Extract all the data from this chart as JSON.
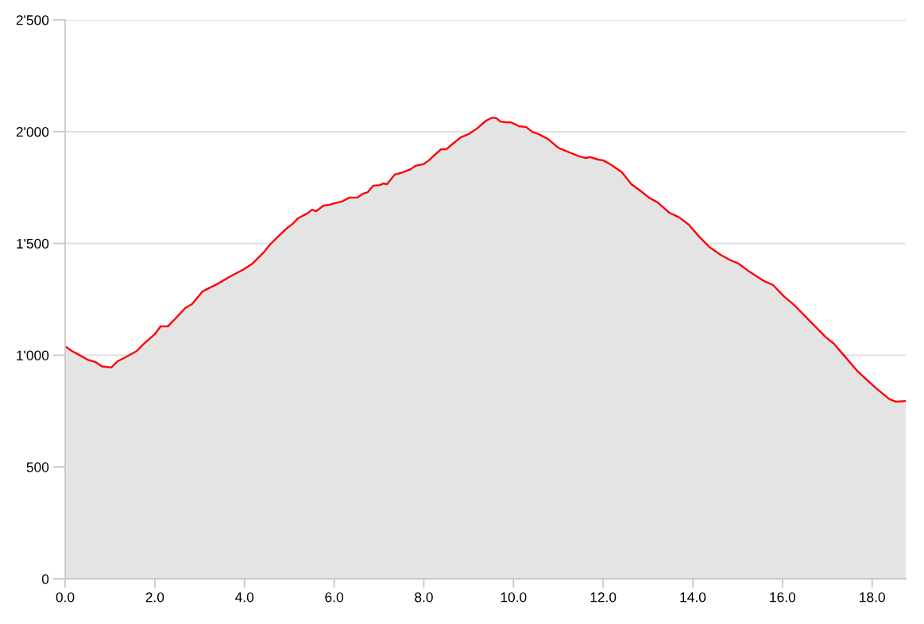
{
  "chart_data": {
    "type": "area",
    "x": [
      0,
      0.14,
      0.32,
      0.5,
      0.67,
      0.82,
      1.03,
      1.17,
      1.35,
      1.6,
      1.74,
      2.0,
      2.13,
      2.29,
      2.48,
      2.68,
      2.83,
      3.07,
      3.38,
      3.69,
      3.99,
      4.18,
      4.43,
      4.57,
      4.75,
      4.96,
      5.07,
      5.19,
      5.4,
      5.51,
      5.6,
      5.76,
      5.9,
      6.02,
      6.17,
      6.34,
      6.52,
      6.64,
      6.75,
      6.87,
      7.02,
      7.1,
      7.18,
      7.35,
      7.53,
      7.71,
      7.81,
      7.99,
      8.11,
      8.38,
      8.5,
      8.65,
      8.82,
      9.0,
      9.18,
      9.39,
      9.53,
      9.62,
      9.71,
      9.83,
      9.94,
      10.06,
      10.12,
      10.28,
      10.42,
      10.56,
      10.77,
      11.0,
      11.25,
      11.48,
      11.61,
      11.71,
      11.89,
      12.01,
      12.19,
      12.42,
      12.63,
      12.85,
      13.02,
      13.22,
      13.48,
      13.7,
      13.91,
      14.14,
      14.37,
      14.62,
      14.85,
      15.02,
      15.26,
      15.56,
      15.79,
      16.03,
      16.26,
      16.62,
      16.97,
      17.15,
      17.33,
      17.68,
      18.09,
      18.39,
      18.53,
      18.75
    ],
    "series": [
      {
        "color": "#ff0000",
        "values": [
          1040,
          1020,
          1000,
          980,
          970,
          950,
          945,
          973,
          991,
          1019,
          1048,
          1094,
          1129,
          1129,
          1168,
          1211,
          1229,
          1286,
          1317,
          1353,
          1385,
          1410,
          1460,
          1495,
          1531,
          1570,
          1587,
          1612,
          1634,
          1651,
          1644,
          1669,
          1673,
          1680,
          1687,
          1705,
          1705,
          1722,
          1729,
          1758,
          1761,
          1768,
          1765,
          1808,
          1818,
          1832,
          1847,
          1854,
          1871,
          1921,
          1921,
          1946,
          1974,
          1989,
          2013,
          2049,
          2063,
          2060,
          2045,
          2042,
          2042,
          2031,
          2024,
          2021,
          1999,
          1989,
          1967,
          1928,
          1907,
          1889,
          1882,
          1886,
          1875,
          1871,
          1850,
          1818,
          1765,
          1733,
          1705,
          1683,
          1637,
          1616,
          1584,
          1531,
          1484,
          1449,
          1424,
          1410,
          1374,
          1335,
          1314,
          1264,
          1225,
          1151,
          1080,
          1051,
          1009,
          927,
          852,
          803,
          792,
          795
        ]
      }
    ],
    "xlim": [
      0,
      18.75
    ],
    "xticks": [
      {
        "value": 0,
        "label": "0.0"
      },
      {
        "value": 2,
        "label": "2.0"
      },
      {
        "value": 4,
        "label": "4.0"
      },
      {
        "value": 6,
        "label": "6.0"
      },
      {
        "value": 8,
        "label": "8.0"
      },
      {
        "value": 10,
        "label": "10.0"
      },
      {
        "value": 12,
        "label": "12.0"
      },
      {
        "value": 14,
        "label": "14.0"
      },
      {
        "value": 16,
        "label": "16.0"
      },
      {
        "value": 18,
        "label": "18.0"
      }
    ],
    "ylim": [
      0,
      2500
    ],
    "yticks": [
      0,
      500,
      {
        "value": 1000,
        "label": "1'000"
      },
      {
        "value": 1500,
        "label": "1'500"
      },
      {
        "value": 2000,
        "label": "2'000"
      },
      {
        "value": 2500,
        "label": "2'500"
      }
    ],
    "grid": "y"
  }
}
